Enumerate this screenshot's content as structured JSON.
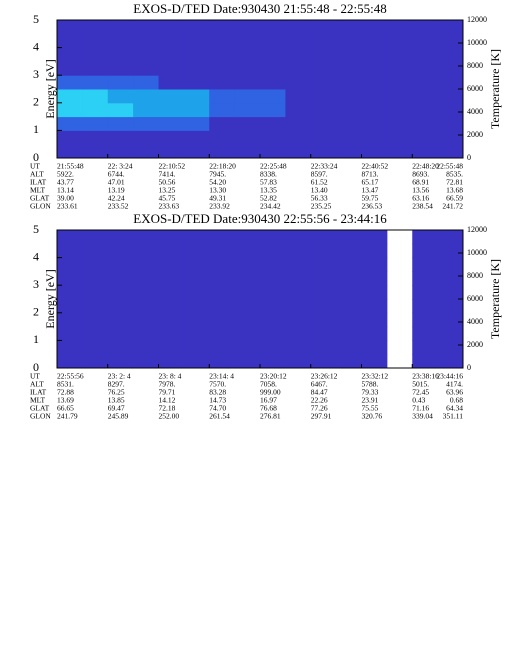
{
  "chart_data": [
    {
      "type": "heatmap",
      "title": "EXOS-D/TED  Date:930430  21:55:48 - 22:55:48",
      "ylabel": "Energy [eV]",
      "y2label": "Temperature [K]",
      "ylim": [
        0,
        5
      ],
      "yticks": [
        0,
        1,
        2,
        3,
        4,
        5
      ],
      "y2lim": [
        0,
        12000
      ],
      "y2ticks": [
        0,
        2000,
        4000,
        6000,
        8000,
        10000,
        12000
      ],
      "colors": [
        "#2a2596",
        "#3a33c2",
        "#2f63e2",
        "#1ea3ea",
        "#2bd0f4"
      ],
      "values": [
        [
          1,
          1,
          1,
          1,
          1,
          1,
          1,
          1,
          1,
          1,
          1,
          1,
          1,
          1,
          1,
          1
        ],
        [
          1,
          1,
          1,
          1,
          1,
          1,
          1,
          1,
          1,
          1,
          1,
          1,
          1,
          1,
          1,
          1
        ],
        [
          2,
          2,
          2,
          2,
          2,
          2,
          1,
          1,
          1,
          1,
          1,
          1,
          1,
          1,
          1,
          1
        ],
        [
          4,
          4,
          4,
          3,
          3,
          3,
          2,
          2,
          2,
          1,
          1,
          1,
          1,
          1,
          1,
          1
        ],
        [
          4,
          4,
          3,
          3,
          3,
          3,
          2,
          2,
          2,
          1,
          1,
          1,
          1,
          1,
          1,
          1
        ],
        [
          2,
          2,
          2,
          2,
          1,
          1,
          1,
          1,
          1,
          1,
          1,
          1,
          1,
          1,
          1,
          1
        ],
        [
          1,
          1,
          1,
          1,
          1,
          1,
          1,
          1,
          1,
          1,
          1,
          1,
          1,
          1,
          1,
          1
        ],
        [
          1,
          1,
          1,
          1,
          1,
          1,
          1,
          1,
          1,
          1,
          1,
          1,
          1,
          1,
          1,
          1
        ],
        [
          1,
          1,
          1,
          1,
          1,
          1,
          1,
          1,
          1,
          1,
          1,
          1,
          1,
          1,
          1,
          1
        ],
        [
          1,
          1,
          1,
          1,
          1,
          1,
          1,
          1,
          1,
          1,
          1,
          1,
          1,
          1,
          1,
          1
        ]
      ],
      "table": [
        {
          "label": "UT",
          "values": [
            "21:55:48",
            "22: 3:24",
            "22:10:52",
            "22:18:20",
            "22:25:48",
            "22:33:24",
            "22:40:52",
            "22:48:20",
            "22:55:48"
          ]
        },
        {
          "label": "ALT",
          "values": [
            "5922.",
            "6744.",
            "7414.",
            "7945.",
            "8338.",
            "8597.",
            "8713.",
            "8693.",
            "8535."
          ]
        },
        {
          "label": "ILAT",
          "values": [
            "43.77",
            "47.01",
            "50.56",
            "54.20",
            "57.83",
            "61.52",
            "65.17",
            "68.91",
            "72.81"
          ]
        },
        {
          "label": "MLT",
          "values": [
            "13.14",
            "13.19",
            "13.25",
            "13.30",
            "13.35",
            "13.40",
            "13.47",
            "13.56",
            "13.68"
          ]
        },
        {
          "label": "GLAT",
          "values": [
            "39.00",
            "42.24",
            "45.75",
            "49.31",
            "52.82",
            "56.33",
            "59.75",
            "63.16",
            "66.59"
          ]
        },
        {
          "label": "GLON",
          "values": [
            "233.61",
            "233.52",
            "233.63",
            "233.92",
            "234.42",
            "235.25",
            "236.53",
            "238.54",
            "241.72"
          ]
        }
      ]
    },
    {
      "type": "heatmap",
      "title": "EXOS-D/TED  Date:930430  22:55:56 - 23:44:16",
      "ylabel": "Energy [eV]",
      "y2label": "Temperature [K]",
      "ylim": [
        0,
        5
      ],
      "yticks": [
        0,
        1,
        2,
        3,
        4,
        5
      ],
      "y2lim": [
        0,
        12000
      ],
      "y2ticks": [
        0,
        2000,
        4000,
        6000,
        8000,
        10000,
        12000
      ],
      "colors": [
        "#2a2596",
        "#3a33c2",
        "#2f63e2",
        "#1ea3ea",
        "#2bd0f4"
      ],
      "values": [
        [
          1,
          1,
          1,
          1,
          1,
          1,
          1,
          1,
          1,
          1,
          1,
          1,
          1,
          null,
          1,
          1
        ],
        [
          1,
          1,
          1,
          1,
          1,
          1,
          1,
          1,
          1,
          1,
          1,
          1,
          1,
          null,
          1,
          1
        ],
        [
          1,
          1,
          1,
          1,
          1,
          1,
          1,
          1,
          1,
          1,
          1,
          1,
          1,
          null,
          1,
          1
        ],
        [
          1,
          1,
          1,
          1,
          1,
          1,
          1,
          1,
          1,
          1,
          1,
          1,
          1,
          null,
          1,
          1
        ],
        [
          1,
          1,
          1,
          1,
          1,
          1,
          1,
          1,
          1,
          1,
          1,
          1,
          1,
          null,
          1,
          1
        ],
        [
          1,
          1,
          1,
          1,
          1,
          1,
          1,
          1,
          1,
          1,
          1,
          1,
          1,
          null,
          1,
          1
        ],
        [
          1,
          1,
          1,
          1,
          1,
          1,
          1,
          1,
          1,
          1,
          1,
          1,
          1,
          null,
          1,
          1
        ],
        [
          1,
          1,
          1,
          1,
          1,
          1,
          1,
          1,
          1,
          1,
          1,
          1,
          1,
          null,
          1,
          1
        ],
        [
          1,
          1,
          1,
          1,
          1,
          1,
          1,
          1,
          1,
          1,
          1,
          1,
          1,
          null,
          1,
          1
        ],
        [
          1,
          1,
          1,
          1,
          1,
          1,
          1,
          1,
          1,
          1,
          1,
          1,
          1,
          null,
          1,
          1
        ]
      ],
      "table": [
        {
          "label": "UT",
          "values": [
            "22:55:56",
            "23: 2: 4",
            "23: 8: 4",
            "23:14: 4",
            "23:20:12",
            "23:26:12",
            "23:32:12",
            "23:38:16",
            "23:44:16"
          ]
        },
        {
          "label": "ALT",
          "values": [
            "8531.",
            "8297.",
            "7978.",
            "7570.",
            "7058.",
            "6467.",
            "5788.",
            "5015.",
            "4174."
          ]
        },
        {
          "label": "ILAT",
          "values": [
            "72.88",
            "76.25",
            "79.71",
            "83.28",
            "999.00",
            "84.47",
            "79.33",
            "72.45",
            "63.96"
          ]
        },
        {
          "label": "MLT",
          "values": [
            "13.69",
            "13.85",
            "14.12",
            "14.73",
            "16.97",
            "22.26",
            "23.91",
            "0.43",
            "0.68"
          ]
        },
        {
          "label": "GLAT",
          "values": [
            "66.65",
            "69.47",
            "72.18",
            "74.70",
            "76.68",
            "77.26",
            "75.55",
            "71.16",
            "64.34"
          ]
        },
        {
          "label": "GLON",
          "values": [
            "241.79",
            "245.89",
            "252.00",
            "261.54",
            "276.81",
            "297.91",
            "320.76",
            "339.04",
            "351.11"
          ]
        }
      ]
    }
  ]
}
